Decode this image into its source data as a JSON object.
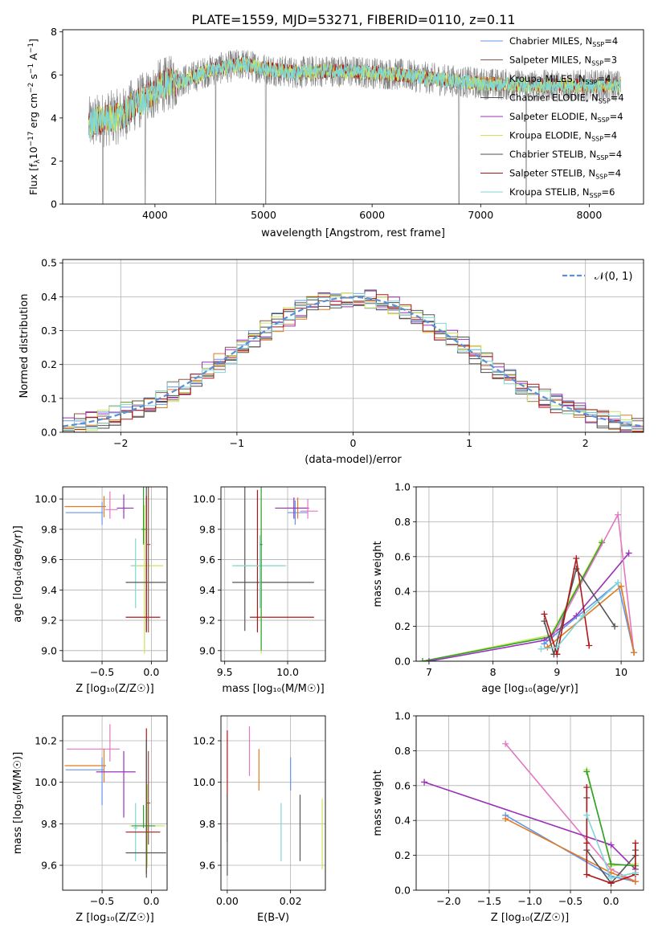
{
  "figure": {
    "title": "PLATE=1559, MJD=53271, FIBERID=0110, z=0.11"
  },
  "colors": {
    "chabrier_miles": "#6495ed",
    "salpeter_miles": "#8c564b",
    "kroupa_miles": "#e07b20",
    "chabrier_elodie": "#4d4d4d",
    "salpeter_elodie": "#9b30b8",
    "kroupa_elodie": "#c8e65a",
    "chabrier_stelib": "#555555",
    "salpeter_stelib": "#b01818",
    "kroupa_stelib": "#7fd6d6",
    "pink": "#e377c2",
    "green": "#2ca02c",
    "gauss": "#5b8fd6",
    "grid": "#b0b0b0"
  },
  "chart_data": [
    {
      "id": "spectrum",
      "type": "line",
      "xlabel": "wavelength [Angstrom, rest frame]",
      "ylabel_prefix": "Flux [f",
      "ylabel_sub": "λ",
      "ylabel_mid": "10",
      "ylabel_sup1": "−17",
      "ylabel_mid2": " erg cm",
      "ylabel_sup2": "−2",
      "ylabel_mid3": " s",
      "ylabel_sup3": "−1",
      "ylabel_mid4": " A",
      "ylabel_sup4": "−1",
      "ylabel_end": "]",
      "xlim": [
        3150,
        8500
      ],
      "ylim": [
        0,
        8.1
      ],
      "xticks": [
        4000,
        5000,
        6000,
        7000,
        8000
      ],
      "yticks": [
        0,
        2,
        4,
        6,
        8
      ],
      "data_range": [
        3390,
        8290
      ],
      "legend": [
        {
          "label": "Chabrier MILES, N",
          "sub": "SSP",
          "end": "=4",
          "color": "chabrier_miles"
        },
        {
          "label": "Salpeter MILES, N",
          "sub": "SSP",
          "end": "=3",
          "color": "salpeter_miles"
        },
        {
          "label": "Kroupa MILES, N",
          "sub": "SSP",
          "end": "=4",
          "color": "kroupa_miles"
        },
        {
          "label": "Chabrier ELODIE, N",
          "sub": "SSP",
          "end": "=4",
          "color": "chabrier_elodie"
        },
        {
          "label": "Salpeter ELODIE, N",
          "sub": "SSP",
          "end": "=4",
          "color": "salpeter_elodie"
        },
        {
          "label": "Kroupa ELODIE, N",
          "sub": "SSP",
          "end": "=4",
          "color": "kroupa_elodie"
        },
        {
          "label": "Chabrier STELIB, N",
          "sub": "SSP",
          "end": "=4",
          "color": "chabrier_stelib"
        },
        {
          "label": "Salpeter STELIB, N",
          "sub": "SSP",
          "end": "=4",
          "color": "salpeter_stelib"
        },
        {
          "label": "Kroupa STELIB, N",
          "sub": "SSP",
          "end": "=6",
          "color": "kroupa_stelib"
        }
      ],
      "continuum": [
        [
          3390,
          3.7
        ],
        [
          3500,
          3.9
        ],
        [
          3700,
          4.1
        ],
        [
          3800,
          4.6
        ],
        [
          3950,
          5.0
        ],
        [
          4050,
          5.5
        ],
        [
          4300,
          5.8
        ],
        [
          4500,
          6.2
        ],
        [
          4800,
          6.5
        ],
        [
          5000,
          6.3
        ],
        [
          5300,
          6.1
        ],
        [
          5600,
          6.2
        ],
        [
          6000,
          6.1
        ],
        [
          6300,
          6.0
        ],
        [
          6600,
          5.8
        ],
        [
          7000,
          5.6
        ],
        [
          7500,
          5.5
        ],
        [
          8000,
          5.5
        ],
        [
          8290,
          5.5
        ]
      ]
    },
    {
      "id": "residuals",
      "type": "line",
      "xlabel": "(data-model)/error",
      "ylabel": "Normed distribution",
      "xlim": [
        -2.5,
        2.5
      ],
      "ylim": [
        0,
        0.51
      ],
      "xticks": [
        -2,
        -1,
        0,
        1,
        2
      ],
      "yticks": [
        0.0,
        0.1,
        0.2,
        0.3,
        0.4,
        0.5
      ],
      "legend": [
        {
          "label": "𝒩(0, 1)",
          "color": "gauss"
        }
      ],
      "bin_width": 0.1
    },
    {
      "id": "age_vs_Z",
      "type": "scatter",
      "xlabel": "Z [log₁₀(Z/Z☉)]",
      "ylabel": "age  [log₁₀(age/yr)]",
      "xlim": [
        -0.9,
        0.16
      ],
      "ylim": [
        8.93,
        10.08
      ],
      "xticks": [
        -0.5,
        0.0
      ],
      "yticks": [
        9.0,
        9.2,
        9.4,
        9.6,
        9.8,
        10.0
      ],
      "series": [
        {
          "color": "kroupa_miles",
          "x": -0.48,
          "xerr": [
            0.4,
            0.02
          ],
          "y": 9.95,
          "yerr": [
            0.07,
            0.07
          ]
        },
        {
          "color": "chabrier_miles",
          "x": -0.5,
          "xerr": [
            0.37,
            0.01
          ],
          "y": 9.91,
          "yerr": [
            0.08,
            0.07
          ]
        },
        {
          "color": "salpeter_elodie",
          "x": -0.28,
          "xerr": [
            0.07,
            0.1
          ],
          "y": 9.94,
          "yerr": [
            0.07,
            0.09
          ]
        },
        {
          "color": "pink",
          "x": -0.42,
          "xerr": [
            0.05,
            0.08
          ],
          "y": 9.93,
          "yerr": [
            0.06,
            0.12
          ]
        },
        {
          "color": "kroupa_stelib",
          "x": -0.16,
          "xerr": [
            0.05,
            0.1
          ],
          "y": 9.56,
          "yerr": [
            0.28,
            0.18
          ]
        },
        {
          "color": "kroupa_elodie",
          "x": -0.07,
          "xerr": [
            0.09,
            0.19
          ],
          "y": 9.56,
          "yerr": [
            0.58,
            0.4
          ]
        },
        {
          "color": "chabrier_stelib",
          "x": -0.05,
          "xerr": [
            0.21,
            0.2
          ],
          "y": 9.45,
          "yerr": [
            0.32,
            0.64
          ]
        },
        {
          "color": "salpeter_stelib",
          "x": -0.05,
          "xerr": [
            0.21,
            0.14
          ],
          "y": 9.22,
          "yerr": [
            0.1,
            0.8
          ]
        },
        {
          "color": "green",
          "x": -0.08,
          "xerr": [
            0.02,
            0.04
          ],
          "y": 9.8,
          "yerr": [
            0.1,
            0.28
          ]
        },
        {
          "color": "salpeter_miles",
          "x": -0.03,
          "xerr": [
            0.02,
            0.02
          ],
          "y": 9.7,
          "yerr": [
            0.58,
            0.38
          ]
        }
      ]
    },
    {
      "id": "age_vs_mass",
      "type": "scatter",
      "xlabel": "mass [log₁₀(M/M☉)]",
      "ylabel": "",
      "xlim": [
        9.47,
        10.3
      ],
      "ylim": [
        8.93,
        10.08
      ],
      "xticks": [
        9.5,
        10.0
      ],
      "yticks": [
        9.0,
        9.2,
        9.4,
        9.6,
        9.8,
        10.0
      ],
      "series": [
        {
          "color": "chabrier_miles",
          "x": 10.06,
          "xerr": [
            0.06,
            0.1
          ],
          "y": 9.91,
          "yerr": [
            0.08,
            0.08
          ]
        },
        {
          "color": "kroupa_miles",
          "x": 10.08,
          "xerr": [
            0.08,
            0.08
          ],
          "y": 9.94,
          "yerr": [
            0.07,
            0.07
          ]
        },
        {
          "color": "salpeter_elodie",
          "x": 10.05,
          "xerr": [
            0.15,
            0.12
          ],
          "y": 9.94,
          "yerr": [
            0.07,
            0.07
          ]
        },
        {
          "color": "pink",
          "x": 10.16,
          "xerr": [
            0.06,
            0.08
          ],
          "y": 9.92,
          "yerr": [
            0.05,
            0.08
          ]
        },
        {
          "color": "chabrier_stelib",
          "x": 9.66,
          "xerr": [
            0.1,
            0.55
          ],
          "y": 9.45,
          "yerr": [
            0.32,
            0.64
          ]
        },
        {
          "color": "salpeter_stelib",
          "x": 9.76,
          "xerr": [
            0.06,
            0.45
          ],
          "y": 9.22,
          "yerr": [
            0.1,
            0.84
          ]
        },
        {
          "color": "kroupa_elodie",
          "x": 9.79,
          "xerr": [
            0.2,
            0.2
          ],
          "y": 9.56,
          "yerr": [
            0.58,
            0.4
          ]
        },
        {
          "color": "kroupa_stelib",
          "x": 9.78,
          "xerr": [
            0.22,
            0.2
          ],
          "y": 9.56,
          "yerr": [
            0.28,
            0.2
          ]
        },
        {
          "color": "green",
          "x": 9.79,
          "xerr": [
            0.01,
            0.01
          ],
          "y": 9.7,
          "yerr": [
            0.7,
            0.38
          ]
        }
      ]
    },
    {
      "id": "weight_vs_age",
      "type": "line",
      "xlabel": "age  [log₁₀(age/yr)]",
      "ylabel": "mass weight",
      "xlim": [
        6.8,
        10.35
      ],
      "ylim": [
        0,
        1.0
      ],
      "xticks": [
        7,
        8,
        9,
        10
      ],
      "yticks": [
        0.0,
        0.2,
        0.4,
        0.6,
        0.8,
        1.0
      ],
      "series": [
        {
          "color": "kroupa_elodie",
          "x": [
            6.9,
            8.9,
            9.7
          ],
          "y": [
            0.0,
            0.15,
            0.69
          ]
        },
        {
          "color": "green",
          "x": [
            6.9,
            8.9,
            9.7
          ],
          "y": [
            0.0,
            0.14,
            0.68
          ]
        },
        {
          "color": "salpeter_elodie",
          "x": [
            7.0,
            8.8,
            9.3,
            10.12
          ],
          "y": [
            0.0,
            0.12,
            0.26,
            0.62
          ]
        },
        {
          "color": "pink",
          "x": [
            8.9,
            9.95,
            10.2
          ],
          "y": [
            0.12,
            0.84,
            0.05
          ]
        },
        {
          "color": "chabrier_miles",
          "x": [
            8.8,
            9.95,
            10.2
          ],
          "y": [
            0.1,
            0.45,
            0.05
          ]
        },
        {
          "color": "kroupa_miles",
          "x": [
            8.85,
            10.0,
            10.2
          ],
          "y": [
            0.08,
            0.43,
            0.05
          ]
        },
        {
          "color": "chabrier_stelib",
          "x": [
            8.8,
            8.95,
            9.3,
            9.9
          ],
          "y": [
            0.23,
            0.04,
            0.53,
            0.2
          ]
        },
        {
          "color": "salpeter_stelib",
          "x": [
            8.8,
            9.0,
            9.3,
            9.5
          ],
          "y": [
            0.27,
            0.04,
            0.59,
            0.09
          ]
        },
        {
          "color": "kroupa_stelib",
          "x": [
            8.75,
            9.0,
            9.4,
            9.95
          ],
          "y": [
            0.07,
            0.08,
            0.26,
            0.45
          ]
        }
      ]
    },
    {
      "id": "mass_vs_Z",
      "type": "scatter",
      "xlabel": "Z [log₁₀(Z/Z☉)]",
      "ylabel": "mass [log₁₀(M/M☉)]",
      "xlim": [
        -0.9,
        0.16
      ],
      "ylim": [
        9.48,
        10.32
      ],
      "xticks": [
        -0.5,
        0.0
      ],
      "yticks": [
        9.6,
        9.8,
        10.0,
        10.2
      ],
      "series": [
        {
          "color": "pink",
          "x": -0.42,
          "xerr": [
            0.44,
            0.1
          ],
          "y": 10.16,
          "yerr": [
            0.06,
            0.12
          ]
        },
        {
          "color": "kroupa_miles",
          "x": -0.48,
          "xerr": [
            0.4,
            0.02
          ],
          "y": 10.08,
          "yerr": [
            0.08,
            0.08
          ]
        },
        {
          "color": "chabrier_miles",
          "x": -0.5,
          "xerr": [
            0.37,
            0.02
          ],
          "y": 10.06,
          "yerr": [
            0.17,
            0.06
          ]
        },
        {
          "color": "salpeter_elodie",
          "x": -0.28,
          "xerr": [
            0.28,
            0.12
          ],
          "y": 10.05,
          "yerr": [
            0.22,
            0.1
          ]
        },
        {
          "color": "kroupa_stelib",
          "x": -0.16,
          "xerr": [
            0.02,
            0.02
          ],
          "y": 9.78,
          "yerr": [
            0.16,
            0.12
          ]
        },
        {
          "color": "kroupa_elodie",
          "x": -0.04,
          "xerr": [
            0.18,
            0.18
          ],
          "y": 9.79,
          "yerr": [
            0.2,
            0.2
          ]
        },
        {
          "color": "green",
          "x": -0.08,
          "xerr": [
            0.12,
            0.12
          ],
          "y": 9.79,
          "yerr": [
            0.01,
            0.1
          ]
        },
        {
          "color": "salpeter_stelib",
          "x": -0.05,
          "xerr": [
            0.21,
            0.14
          ],
          "y": 9.76,
          "yerr": [
            0.2,
            0.5
          ]
        },
        {
          "color": "chabrier_stelib",
          "x": -0.05,
          "xerr": [
            0.21,
            0.2
          ],
          "y": 9.66,
          "yerr": [
            0.12,
            0.55
          ]
        },
        {
          "color": "salpeter_miles",
          "x": -0.03,
          "xerr": [
            0.02,
            0.02
          ],
          "y": 9.9,
          "yerr": [
            0.2,
            0.25
          ]
        }
      ]
    },
    {
      "id": "mass_vs_ebv",
      "type": "scatter",
      "xlabel": "E(B-V)",
      "ylabel": "",
      "xlim": [
        -0.002,
        0.031
      ],
      "ylim": [
        9.48,
        10.32
      ],
      "xticks": [
        0.0,
        0.02
      ],
      "yticks": [
        9.6,
        9.8,
        10.0,
        10.2
      ],
      "series": [
        {
          "color": "salpeter_stelib",
          "x": 0.0,
          "y": 9.98,
          "yerr": [
            0.27,
            0.27
          ]
        },
        {
          "color": "chabrier_stelib",
          "x": 0.0,
          "y": 9.75,
          "yerr": [
            0.2,
            0.2
          ]
        },
        {
          "color": "pink",
          "x": 0.007,
          "y": 10.15,
          "yerr": [
            0.12,
            0.12
          ]
        },
        {
          "color": "kroupa_miles",
          "x": 0.01,
          "y": 10.06,
          "yerr": [
            0.1,
            0.1
          ]
        },
        {
          "color": "chabrier_miles",
          "x": 0.02,
          "y": 10.04,
          "yerr": [
            0.08,
            0.08
          ]
        },
        {
          "color": "kroupa_stelib",
          "x": 0.017,
          "y": 9.76,
          "yerr": [
            0.14,
            0.14
          ]
        },
        {
          "color": "chabrier_stelib",
          "x": 0.023,
          "y": 9.68,
          "yerr": [
            0.06,
            0.26
          ]
        },
        {
          "color": "kroupa_elodie",
          "x": 0.03,
          "y": 9.75,
          "yerr": [
            0.17,
            0.17
          ]
        }
      ]
    },
    {
      "id": "weight_vs_Z",
      "type": "line",
      "xlabel": "Z [log₁₀(Z/Z☉)]",
      "ylabel": "mass weight",
      "xlim": [
        -2.4,
        0.4
      ],
      "ylim": [
        0,
        1.0
      ],
      "xticks": [
        -2.0,
        -1.5,
        -1.0,
        -0.5,
        0.0
      ],
      "yticks": [
        0.0,
        0.2,
        0.4,
        0.6,
        0.8,
        1.0
      ],
      "series": [
        {
          "color": "pink",
          "x": [
            -1.3,
            0.0,
            0.3
          ],
          "y": [
            0.84,
            0.12,
            0.05
          ]
        },
        {
          "color": "salpeter_elodie",
          "x": [
            -2.3,
            0.0,
            0.3
          ],
          "y": [
            0.62,
            0.26,
            0.12
          ]
        },
        {
          "color": "chabrier_miles",
          "x": [
            -1.3,
            0.0,
            0.3
          ],
          "y": [
            0.43,
            0.08,
            0.05
          ]
        },
        {
          "color": "kroupa_miles",
          "x": [
            -1.3,
            0.0,
            0.3
          ],
          "y": [
            0.41,
            0.1,
            0.05
          ]
        },
        {
          "color": "kroupa_elodie",
          "x": [
            -0.3,
            0.0,
            0.3
          ],
          "y": [
            0.69,
            0.14,
            0.15
          ]
        },
        {
          "color": "green",
          "x": [
            -0.3,
            0.0,
            0.3
          ],
          "y": [
            0.68,
            0.15,
            0.14
          ]
        },
        {
          "color": "chabrier_stelib",
          "x": [
            -0.3,
            -0.3,
            0.0,
            0.3,
            0.3
          ],
          "y": [
            0.53,
            0.23,
            0.04,
            0.2,
            0.23
          ]
        },
        {
          "color": "salpeter_stelib",
          "x": [
            -0.3,
            -0.3,
            -0.3,
            0.0,
            0.3,
            0.3
          ],
          "y": [
            0.59,
            0.27,
            0.09,
            0.04,
            0.09,
            0.27
          ]
        },
        {
          "color": "kroupa_stelib",
          "x": [
            -0.3,
            0.0,
            0.3
          ],
          "y": [
            0.43,
            0.07,
            0.1
          ]
        }
      ]
    }
  ]
}
